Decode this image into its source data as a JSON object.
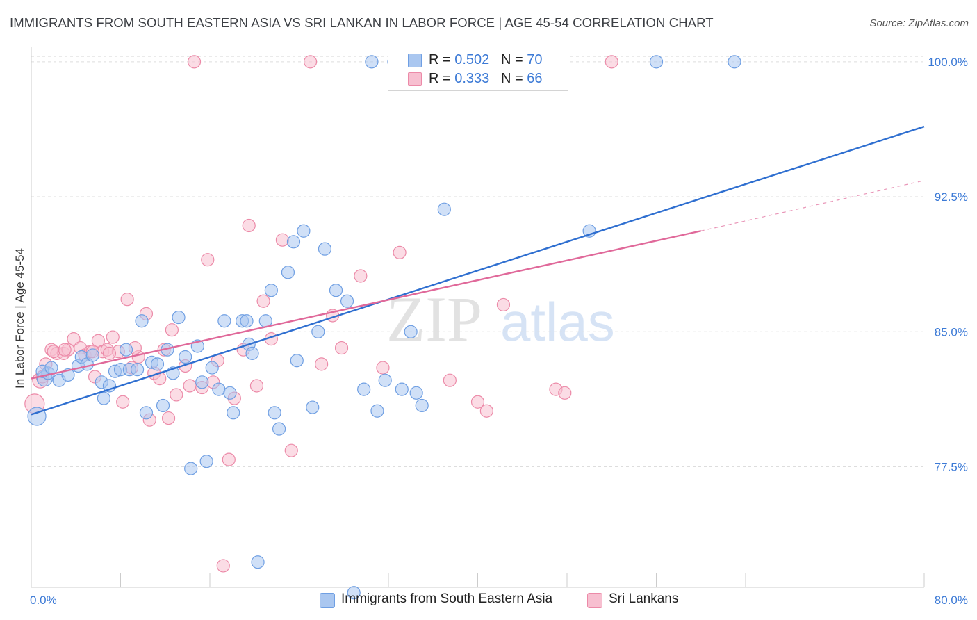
{
  "header": {
    "title": "IMMIGRANTS FROM SOUTH EASTERN ASIA VS SRI LANKAN IN LABOR FORCE | AGE 45-54 CORRELATION CHART",
    "source": "Source: ZipAtlas.com"
  },
  "legend": {
    "blue": {
      "r_label": "R = ",
      "r_value": "0.502",
      "n_label": "N = ",
      "n_value": "70"
    },
    "pink": {
      "r_label": "R = ",
      "r_value": "0.333",
      "n_label": "N = ",
      "n_value": "66"
    }
  },
  "watermark": {
    "zip": "ZIP",
    "atlas": "atlas"
  },
  "colors": {
    "blue": "#6f9fe3",
    "blue_fill": "#aac7f0",
    "blue_line": "#2f6fd0",
    "pink": "#ec8aa8",
    "pink_fill": "#f7bfd0",
    "pink_line": "#e0699a",
    "tick_label": "#3c7ad6",
    "grid": "#dddddd"
  },
  "chart_data": {
    "type": "scatter",
    "xlabel": "",
    "ylabel": "In Labor Force | Age 45-54",
    "xlim": [
      0,
      80
    ],
    "ylim": [
      70.8,
      101.5
    ],
    "x_tick_labels": [
      "0.0%",
      "80.0%"
    ],
    "y_ticks": [
      77.5,
      85.0,
      92.5,
      100.0
    ],
    "y_tick_labels": [
      "77.5%",
      "85.0%",
      "92.5%",
      "100.0%"
    ],
    "grid": true,
    "legend_position": "top-center",
    "series": [
      {
        "name": "Immigrants from South Eastern Asia",
        "color": "blue",
        "points": [
          [
            0.5,
            80.3
          ],
          [
            1.2,
            82.4
          ],
          [
            1.5,
            82.7
          ],
          [
            2.5,
            82.3
          ],
          [
            3.3,
            82.6
          ],
          [
            4.2,
            83.1
          ],
          [
            4.5,
            83.6
          ],
          [
            5.0,
            83.2
          ],
          [
            5.5,
            83.7
          ],
          [
            6.3,
            82.2
          ],
          [
            6.5,
            81.3
          ],
          [
            7.0,
            82.0
          ],
          [
            7.5,
            82.8
          ],
          [
            8.0,
            82.9
          ],
          [
            8.5,
            84.0
          ],
          [
            8.8,
            82.9
          ],
          [
            9.5,
            82.9
          ],
          [
            9.9,
            85.6
          ],
          [
            10.3,
            80.5
          ],
          [
            10.8,
            83.3
          ],
          [
            11.3,
            83.2
          ],
          [
            11.8,
            80.9
          ],
          [
            12.2,
            84.0
          ],
          [
            12.7,
            82.7
          ],
          [
            13.2,
            85.8
          ],
          [
            13.8,
            83.6
          ],
          [
            14.3,
            77.4
          ],
          [
            14.9,
            84.2
          ],
          [
            15.3,
            82.2
          ],
          [
            15.7,
            77.8
          ],
          [
            16.2,
            83.0
          ],
          [
            16.8,
            81.8
          ],
          [
            17.3,
            85.6
          ],
          [
            17.8,
            81.6
          ],
          [
            18.1,
            80.5
          ],
          [
            18.9,
            85.6
          ],
          [
            19.3,
            85.6
          ],
          [
            19.5,
            84.3
          ],
          [
            19.8,
            83.8
          ],
          [
            20.3,
            72.2
          ],
          [
            21.0,
            85.6
          ],
          [
            21.5,
            87.3
          ],
          [
            21.8,
            80.5
          ],
          [
            22.2,
            79.6
          ],
          [
            23.0,
            88.3
          ],
          [
            23.5,
            90.0
          ],
          [
            23.8,
            83.4
          ],
          [
            24.4,
            90.6
          ],
          [
            25.2,
            80.8
          ],
          [
            25.7,
            85.0
          ],
          [
            26.3,
            89.6
          ],
          [
            27.3,
            87.3
          ],
          [
            28.3,
            86.7
          ],
          [
            28.9,
            70.5
          ],
          [
            29.8,
            81.8
          ],
          [
            30.5,
            100.0
          ],
          [
            31.0,
            80.6
          ],
          [
            31.7,
            82.3
          ],
          [
            32.5,
            100.0
          ],
          [
            33.2,
            81.8
          ],
          [
            34.0,
            85.0
          ],
          [
            34.5,
            81.6
          ],
          [
            35.0,
            80.9
          ],
          [
            37.0,
            91.8
          ],
          [
            45.0,
            100.0
          ],
          [
            50.0,
            90.6
          ],
          [
            56.0,
            100.0
          ],
          [
            63.0,
            100.0
          ],
          [
            1.0,
            82.8
          ],
          [
            1.8,
            83.0
          ]
        ],
        "trend": {
          "x": [
            0,
            80
          ],
          "y": [
            80.4,
            96.4
          ]
        }
      },
      {
        "name": "Sri Lankans",
        "color": "pink",
        "points": [
          [
            0.3,
            81.0
          ],
          [
            0.8,
            82.3
          ],
          [
            1.3,
            83.2
          ],
          [
            1.8,
            84.0
          ],
          [
            2.3,
            83.8
          ],
          [
            2.9,
            83.8
          ],
          [
            3.3,
            84.0
          ],
          [
            3.8,
            84.6
          ],
          [
            4.4,
            84.1
          ],
          [
            4.8,
            83.7
          ],
          [
            5.3,
            83.9
          ],
          [
            5.7,
            82.5
          ],
          [
            6.0,
            84.5
          ],
          [
            6.4,
            83.9
          ],
          [
            6.8,
            84.0
          ],
          [
            7.3,
            84.7
          ],
          [
            7.8,
            83.9
          ],
          [
            8.2,
            81.1
          ],
          [
            8.6,
            86.8
          ],
          [
            9.0,
            83.0
          ],
          [
            9.6,
            83.6
          ],
          [
            10.3,
            86.0
          ],
          [
            10.6,
            80.1
          ],
          [
            11.0,
            82.7
          ],
          [
            11.5,
            82.4
          ],
          [
            11.9,
            84.0
          ],
          [
            12.3,
            80.2
          ],
          [
            12.6,
            85.1
          ],
          [
            13.0,
            81.5
          ],
          [
            13.8,
            83.1
          ],
          [
            14.2,
            82.0
          ],
          [
            14.6,
            100.0
          ],
          [
            15.3,
            81.9
          ],
          [
            15.8,
            89.0
          ],
          [
            16.3,
            82.2
          ],
          [
            16.7,
            83.4
          ],
          [
            17.2,
            72.0
          ],
          [
            17.7,
            77.9
          ],
          [
            18.2,
            81.3
          ],
          [
            19.0,
            84.0
          ],
          [
            19.5,
            90.9
          ],
          [
            20.2,
            82.0
          ],
          [
            20.8,
            86.7
          ],
          [
            21.5,
            84.6
          ],
          [
            22.5,
            90.1
          ],
          [
            23.3,
            78.4
          ],
          [
            25.0,
            100.0
          ],
          [
            26.0,
            83.2
          ],
          [
            27.0,
            85.9
          ],
          [
            27.8,
            84.1
          ],
          [
            29.5,
            88.1
          ],
          [
            31.5,
            83.0
          ],
          [
            33.0,
            89.4
          ],
          [
            37.5,
            82.3
          ],
          [
            40.0,
            81.1
          ],
          [
            40.8,
            80.6
          ],
          [
            42.3,
            86.5
          ],
          [
            47.0,
            81.8
          ],
          [
            47.8,
            81.6
          ],
          [
            52.0,
            100.0
          ],
          [
            1.0,
            82.5
          ],
          [
            2.0,
            83.9
          ],
          [
            3.0,
            84.0
          ],
          [
            5.5,
            83.9
          ],
          [
            7.0,
            83.8
          ],
          [
            9.3,
            84.1
          ]
        ],
        "trend": {
          "x": [
            0,
            60
          ],
          "y": [
            82.4,
            90.6
          ]
        },
        "trend_dashed": {
          "x": [
            60,
            80
          ],
          "y": [
            90.6,
            93.4
          ]
        }
      }
    ]
  },
  "bottom_legend": {
    "blue_label": "Immigrants from South Eastern Asia",
    "pink_label": "Sri Lankans"
  }
}
